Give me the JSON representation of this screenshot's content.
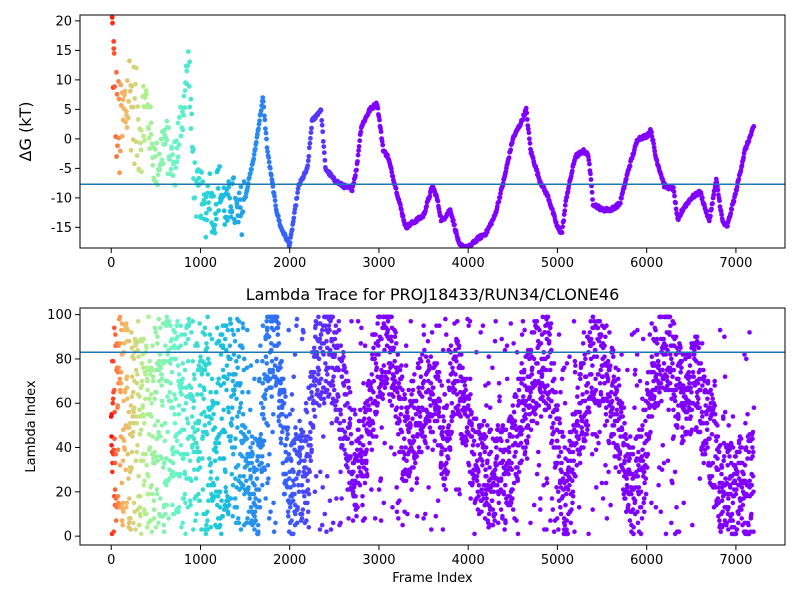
{
  "chart_data": [
    {
      "type": "scatter",
      "title": "",
      "xlabel": "",
      "ylabel": "ΔG (kT)",
      "xlim": [
        -350,
        7550
      ],
      "ylim": [
        -18.5,
        21
      ],
      "xticks": [
        0,
        1000,
        2000,
        3000,
        4000,
        5000,
        6000,
        7000
      ],
      "yticks": [
        -15,
        -10,
        -5,
        0,
        5,
        10,
        15,
        20
      ],
      "hline": {
        "y": -7.7,
        "color": "#1f77b4"
      },
      "colormap": "rainbow (red at frame 0 to violet at later frames)",
      "frames": 7200,
      "trace_keypoints": [
        [
          0,
          20
        ],
        [
          50,
          5
        ],
        [
          100,
          0
        ],
        [
          200,
          8
        ],
        [
          300,
          2
        ],
        [
          400,
          5
        ],
        [
          500,
          -5
        ],
        [
          600,
          0
        ],
        [
          700,
          -5
        ],
        [
          800,
          5
        ],
        [
          870,
          13
        ],
        [
          900,
          0
        ],
        [
          950,
          -10
        ],
        [
          1000,
          -9
        ],
        [
          1050,
          -13
        ],
        [
          1100,
          -8
        ],
        [
          1150,
          -13
        ],
        [
          1200,
          -8
        ],
        [
          1250,
          -10
        ],
        [
          1300,
          -13
        ],
        [
          1350,
          -9
        ],
        [
          1420,
          -14
        ],
        [
          1500,
          -10
        ],
        [
          1600,
          -3
        ],
        [
          1700,
          7
        ],
        [
          1750,
          -2
        ],
        [
          1800,
          -7
        ],
        [
          1850,
          -12
        ],
        [
          1900,
          -15
        ],
        [
          2000,
          -18
        ],
        [
          2100,
          -8
        ],
        [
          2200,
          -5
        ],
        [
          2250,
          3
        ],
        [
          2350,
          5
        ],
        [
          2400,
          -5
        ],
        [
          2500,
          -7
        ],
        [
          2600,
          -8
        ],
        [
          2700,
          -8.5
        ],
        [
          2750,
          -5
        ],
        [
          2800,
          2
        ],
        [
          2900,
          5
        ],
        [
          2980,
          6
        ],
        [
          3050,
          -2
        ],
        [
          3100,
          -3
        ],
        [
          3200,
          -9
        ],
        [
          3300,
          -15
        ],
        [
          3400,
          -14
        ],
        [
          3500,
          -13
        ],
        [
          3600,
          -8
        ],
        [
          3650,
          -10
        ],
        [
          3700,
          -14
        ],
        [
          3800,
          -12
        ],
        [
          3900,
          -18
        ],
        [
          4000,
          -18.5
        ],
        [
          4100,
          -17
        ],
        [
          4200,
          -16
        ],
        [
          4300,
          -13
        ],
        [
          4400,
          -7
        ],
        [
          4500,
          0
        ],
        [
          4600,
          3
        ],
        [
          4650,
          5
        ],
        [
          4700,
          -2
        ],
        [
          4800,
          -7
        ],
        [
          4900,
          -10
        ],
        [
          5000,
          -15
        ],
        [
          5050,
          -16
        ],
        [
          5100,
          -10
        ],
        [
          5200,
          -3
        ],
        [
          5300,
          -2
        ],
        [
          5350,
          -3
        ],
        [
          5400,
          -11
        ],
        [
          5500,
          -12
        ],
        [
          5600,
          -12
        ],
        [
          5700,
          -11
        ],
        [
          5800,
          -5
        ],
        [
          5900,
          0
        ],
        [
          6000,
          0.5
        ],
        [
          6050,
          1.5
        ],
        [
          6100,
          -3
        ],
        [
          6200,
          -8
        ],
        [
          6300,
          -8.5
        ],
        [
          6350,
          -14
        ],
        [
          6400,
          -12
        ],
        [
          6500,
          -10
        ],
        [
          6600,
          -9
        ],
        [
          6700,
          -14
        ],
        [
          6780,
          -7
        ],
        [
          6850,
          -14
        ],
        [
          6900,
          -15
        ],
        [
          7000,
          -9
        ],
        [
          7100,
          -2
        ],
        [
          7200,
          2
        ]
      ]
    },
    {
      "type": "scatter",
      "title": "Lambda Trace for PROJ18433/RUN34/CLONE46",
      "xlabel": "Frame Index",
      "ylabel": "Lambda Index",
      "xlim": [
        -350,
        7550
      ],
      "ylim": [
        -4,
        103
      ],
      "xticks": [
        0,
        1000,
        2000,
        3000,
        4000,
        5000,
        6000,
        7000
      ],
      "yticks": [
        0,
        20,
        40,
        60,
        80,
        100
      ],
      "hline": {
        "y": 83,
        "color": "#1f77b4"
      },
      "colormap": "rainbow (red at frame 0 to violet at later frames)",
      "frames": 7200,
      "lambda_range": [
        1,
        99
      ],
      "center_keypoints": [
        [
          0,
          50
        ],
        [
          500,
          50
        ],
        [
          1000,
          50
        ],
        [
          1300,
          45
        ],
        [
          1500,
          30
        ],
        [
          1650,
          20
        ],
        [
          1750,
          80
        ],
        [
          1850,
          90
        ],
        [
          2000,
          20
        ],
        [
          2100,
          25
        ],
        [
          2200,
          40
        ],
        [
          2300,
          80
        ],
        [
          2450,
          85
        ],
        [
          2600,
          60
        ],
        [
          2750,
          30
        ],
        [
          2850,
          40
        ],
        [
          3000,
          85
        ],
        [
          3150,
          80
        ],
        [
          3300,
          40
        ],
        [
          3450,
          60
        ],
        [
          3600,
          70
        ],
        [
          3750,
          40
        ],
        [
          3850,
          80
        ],
        [
          3950,
          60
        ],
        [
          4100,
          30
        ],
        [
          4300,
          25
        ],
        [
          4450,
          30
        ],
        [
          4600,
          55
        ],
        [
          4750,
          75
        ],
        [
          4900,
          80
        ],
        [
          5000,
          40
        ],
        [
          5100,
          15
        ],
        [
          5250,
          55
        ],
        [
          5400,
          80
        ],
        [
          5550,
          75
        ],
        [
          5700,
          50
        ],
        [
          5850,
          20
        ],
        [
          5950,
          30
        ],
        [
          6100,
          80
        ],
        [
          6250,
          85
        ],
        [
          6400,
          60
        ],
        [
          6550,
          70
        ],
        [
          6650,
          55
        ],
        [
          6750,
          40
        ],
        [
          6850,
          20
        ],
        [
          7000,
          20
        ],
        [
          7200,
          25
        ]
      ]
    }
  ]
}
